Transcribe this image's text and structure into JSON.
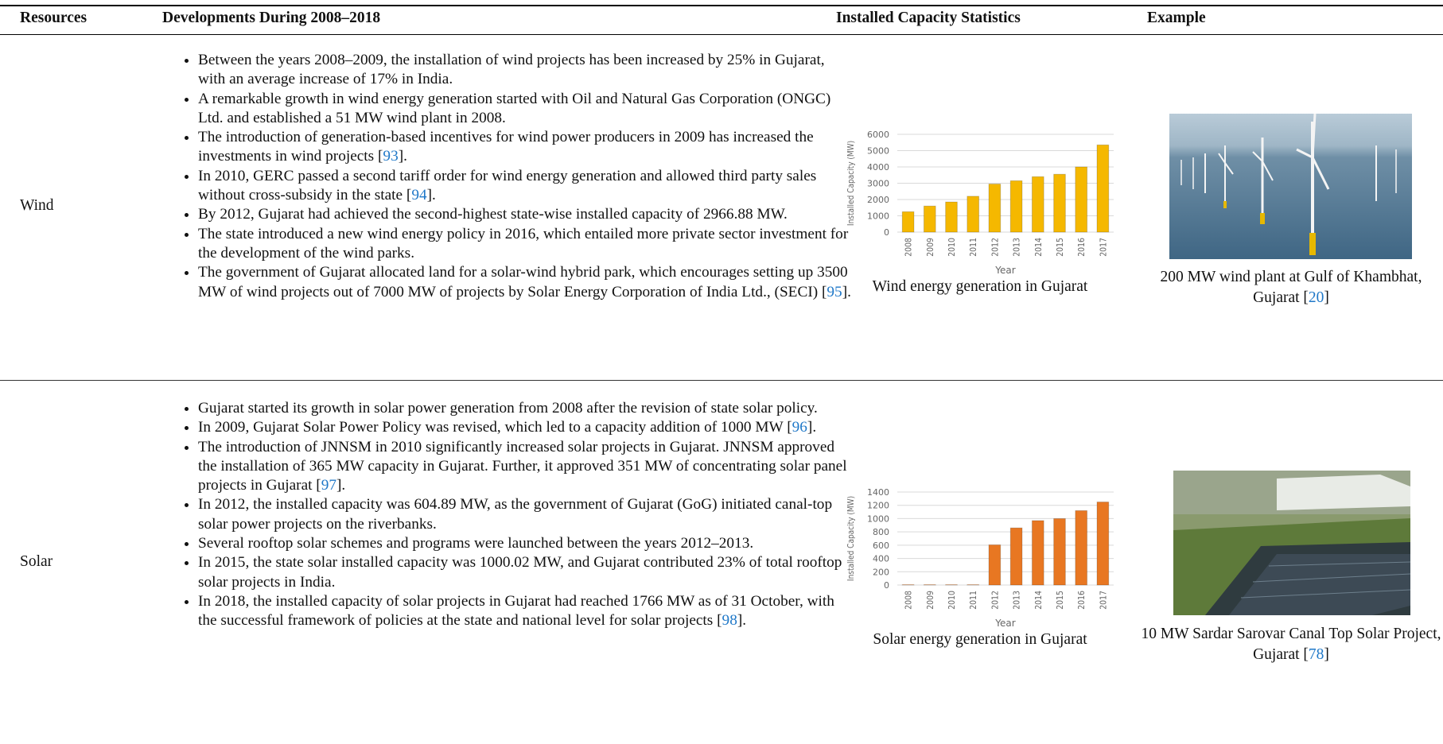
{
  "table": {
    "headers": [
      "Resources",
      "Developments During 2008–2018",
      "Installed Capacity Statistics",
      "Example"
    ],
    "rows": [
      {
        "resource": "Wind",
        "developments": [
          [
            {
              "t": "Between the years 2008–2009, the installation of wind projects has been increased by 25% in Gujarat, with an average increase of 17% in India."
            }
          ],
          [
            {
              "t": "A remarkable growth in wind energy generation started with Oil and Natural Gas Corporation (ONGC) Ltd. and established a 51 MW wind plant in 2008."
            }
          ],
          [
            {
              "t": "The introduction of generation-based incentives for wind power producers in 2009 has increased the investments in wind projects ["
            },
            {
              "ref": "93"
            },
            {
              "t": "]."
            }
          ],
          [
            {
              "t": "In 2010, GERC passed a second tariff order for wind energy generation and allowed third party sales without cross-subsidy in the state ["
            },
            {
              "ref": "94"
            },
            {
              "t": "]."
            }
          ],
          [
            {
              "t": "By 2012, Gujarat had achieved the second-highest state-wise installed capacity of 2966.88 MW."
            }
          ],
          [
            {
              "t": "The state introduced a new wind energy policy in 2016, which entailed more private sector investment for the development of the wind parks."
            }
          ],
          [
            {
              "t": "The government of Gujarat allocated land for a solar-wind hybrid park, which encourages setting up 3500 MW of wind projects out of 7000 MW of projects by Solar Energy Corporation of India Ltd., (SECI) ["
            },
            {
              "ref": "95"
            },
            {
              "t": "]."
            }
          ]
        ],
        "chart": {
          "type": "bar",
          "x_label": "Year",
          "y_label": "Installed Capacity (MW)",
          "categories": [
            "2008",
            "2009",
            "2010",
            "2011",
            "2012",
            "2013",
            "2014",
            "2015",
            "2016",
            "2017"
          ],
          "values": [
            1250,
            1600,
            1850,
            2200,
            2950,
            3150,
            3400,
            3550,
            4000,
            5350
          ],
          "color": "#f5b800",
          "ylim": [
            0,
            6000
          ],
          "yticks": [
            0,
            1000,
            2000,
            3000,
            4000,
            5000,
            6000
          ],
          "grid": true
        },
        "chart_caption": "Wind energy generation in Gujarat",
        "example_caption": [
          {
            "t": "200 MW wind plant at Gulf of Khambhat, Gujarat ["
          },
          {
            "ref": "20"
          },
          {
            "t": "]"
          }
        ]
      },
      {
        "resource": "Solar",
        "developments": [
          [
            {
              "t": "Gujarat started its growth in solar power generation from 2008 after the revision of state solar policy."
            }
          ],
          [
            {
              "t": "In 2009, Gujarat Solar Power Policy was revised, which led to a capacity addition of 1000 MW ["
            },
            {
              "ref": "96"
            },
            {
              "t": "]."
            }
          ],
          [
            {
              "t": "The introduction of JNNSM in 2010 significantly increased solar projects in Gujarat. JNNSM approved the installation of 365 MW capacity in Gujarat. Further, it approved 351 MW of concentrating solar panel projects in Gujarat ["
            },
            {
              "ref": "97"
            },
            {
              "t": "]."
            }
          ],
          [
            {
              "t": "In 2012, the installed capacity was 604.89 MW, as the government of Gujarat (GoG) initiated canal-top solar power projects on the riverbanks."
            }
          ],
          [
            {
              "t": "Several rooftop solar schemes and programs were launched between the years 2012–2013."
            }
          ],
          [
            {
              "t": "In 2015, the state solar installed capacity was 1000.02 MW, and Gujarat contributed 23% of total rooftop solar projects in India."
            }
          ],
          [
            {
              "t": "In 2018, the installed capacity of solar projects in Gujarat had reached 1766 MW as of 31 October, with the successful framework of policies at the state and national level for solar projects ["
            },
            {
              "ref": "98"
            },
            {
              "t": "]."
            }
          ]
        ],
        "chart": {
          "type": "bar",
          "x_label": "Year",
          "y_label": "Installed Capacity (MW)",
          "categories": [
            "2008",
            "2009",
            "2010",
            "2011",
            "2012",
            "2013",
            "2014",
            "2015",
            "2016",
            "2017"
          ],
          "values": [
            5,
            5,
            5,
            5,
            605,
            860,
            970,
            1000,
            1120,
            1250
          ],
          "color": "#e87722",
          "ylim": [
            0,
            1400
          ],
          "yticks": [
            0,
            200,
            400,
            600,
            800,
            1000,
            1200,
            1400
          ],
          "grid": true
        },
        "chart_caption": "Solar energy generation in Gujarat",
        "example_caption": [
          {
            "t": "10 MW Sardar Sarovar Canal Top Solar Project, Gujarat ["
          },
          {
            "ref": "78"
          },
          {
            "t": "]"
          }
        ]
      }
    ]
  }
}
